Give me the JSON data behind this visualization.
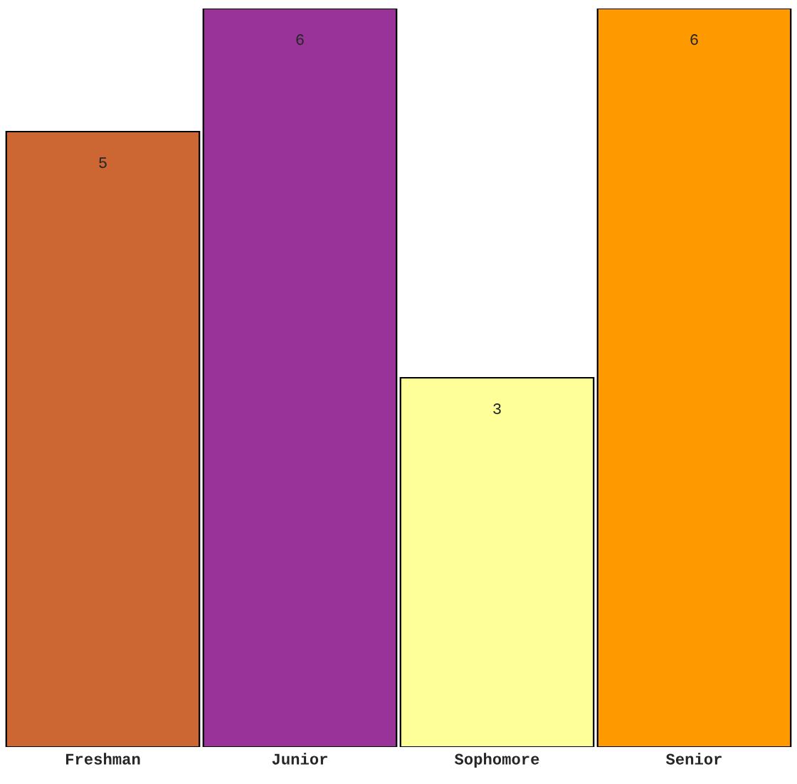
{
  "chart_data": {
    "type": "bar",
    "categories": [
      "Freshman",
      "Junior",
      "Sophomore",
      "Senior"
    ],
    "values": [
      5,
      6,
      3,
      6
    ],
    "colors": [
      "#cc6633",
      "#993399",
      "#ffff99",
      "#ff9900"
    ],
    "ylim": [
      0,
      6
    ],
    "data_labels": true,
    "tick_labels": "x",
    "grid": false,
    "legend": false
  }
}
